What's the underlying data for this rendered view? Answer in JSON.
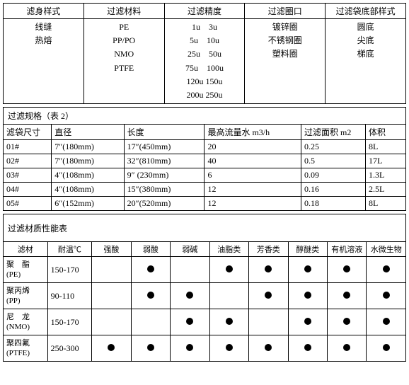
{
  "table1": {
    "headers": [
      "滤身样式",
      "过滤材料",
      "过滤精度",
      "过滤圈口",
      "过滤袋底部样式"
    ],
    "col1": [
      "线缝",
      "热熔"
    ],
    "col2": [
      "PE",
      "PP/PO",
      "NMO",
      "PTFE"
    ],
    "col3": [
      "1u　3u",
      "5u　10u",
      "25u　50u",
      "75u　100u",
      "120u 150u",
      "200u 250u"
    ],
    "col4": [
      "镀锌圈",
      "不锈钢圈",
      "塑料圈"
    ],
    "col5": [
      "圆底",
      "尖底",
      "梯底"
    ]
  },
  "table2": {
    "title": "过滤规格（表 2）",
    "headers": [
      "滤袋尺寸",
      "直径",
      "长度",
      "最高流量水 m3/h",
      "过滤面积 m2",
      "体积"
    ],
    "rows": [
      [
        "01#",
        "7″(180mm)",
        "17″(450mm)",
        "20",
        "0.25",
        "8L"
      ],
      [
        "02#",
        "7″(180mm)",
        "32″(810mm)",
        "40",
        "0.5",
        "17L"
      ],
      [
        "03#",
        "4″(108mm)",
        "9″ (230mm)",
        "6",
        "0.09",
        "1.3L"
      ],
      [
        "04#",
        "4″(108mm)",
        "15″(380mm)",
        "12",
        "0.16",
        "2.5L"
      ],
      [
        "05#",
        "6″(152mm)",
        "20″(520mm)",
        "12",
        "0.18",
        "8L"
      ]
    ]
  },
  "table3": {
    "title": "过滤材质性能表",
    "headers": [
      "滤材",
      "耐温℃",
      "强酸",
      "弱酸",
      "弱碱",
      "油脂类",
      "芳香类",
      "醇醚类",
      "有机溶液",
      "水微生物"
    ],
    "rows": [
      {
        "mat1": "聚　酯",
        "mat2": "(PE)",
        "temp": "150-170",
        "dots": [
          false,
          true,
          false,
          true,
          true,
          true,
          true,
          true
        ]
      },
      {
        "mat1": "聚丙烯",
        "mat2": "(PP)",
        "temp": "90-110",
        "dots": [
          false,
          true,
          true,
          false,
          true,
          true,
          true,
          true
        ]
      },
      {
        "mat1": "尼　龙",
        "mat2": "(NMO)",
        "temp": "150-170",
        "dots": [
          false,
          false,
          true,
          true,
          false,
          true,
          true,
          true
        ]
      },
      {
        "mat1": "聚四氟",
        "mat2": "(PTFE)",
        "temp": "250-300",
        "dots": [
          true,
          true,
          true,
          true,
          true,
          true,
          true,
          true
        ]
      }
    ]
  }
}
